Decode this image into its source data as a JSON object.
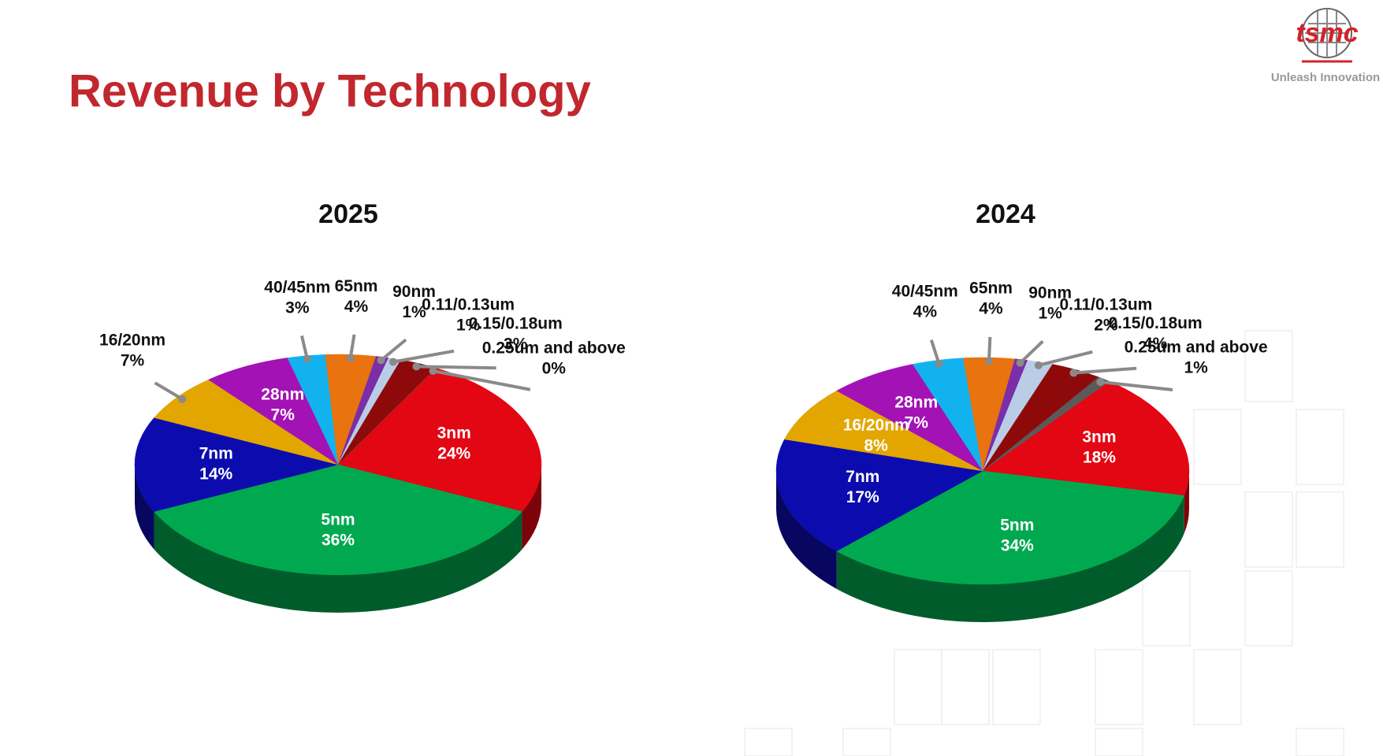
{
  "title": "Revenue by Technology",
  "logo": {
    "name": "tsmc",
    "tagline": "Unleash Innovation"
  },
  "chart_data": [
    {
      "type": "pie",
      "title": "2025",
      "categories": [
        "3nm",
        "5nm",
        "7nm",
        "16/20nm",
        "28nm",
        "40/45nm",
        "65nm",
        "90nm",
        "0.11/0.13um",
        "0.15/0.18um",
        "0.25um and above"
      ],
      "values": [
        24,
        36,
        14,
        7,
        7,
        3,
        4,
        1,
        1,
        3,
        0
      ],
      "value_labels": [
        "24%",
        "36%",
        "14%",
        "7%",
        "7%",
        "3%",
        "4%",
        "1%",
        "1%",
        "3%",
        "0%"
      ],
      "colors": [
        "#e30613",
        "#00a94f",
        "#0c0cae",
        "#e3a600",
        "#a312b5",
        "#12b2ef",
        "#e8730f",
        "#7a2ea8",
        "#b9cde6",
        "#8e0a0a",
        "#5a5a5a"
      ]
    },
    {
      "type": "pie",
      "title": "2024",
      "categories": [
        "3nm",
        "5nm",
        "7nm",
        "16/20nm",
        "28nm",
        "40/45nm",
        "65nm",
        "90nm",
        "0.11/0.13um",
        "0.15/0.18um",
        "0.25um and above"
      ],
      "values": [
        18,
        34,
        17,
        8,
        7,
        4,
        4,
        1,
        2,
        4,
        1
      ],
      "value_labels": [
        "18%",
        "34%",
        "17%",
        "8%",
        "7%",
        "4%",
        "4%",
        "1%",
        "2%",
        "4%",
        "1%"
      ],
      "colors": [
        "#e30613",
        "#00a94f",
        "#0c0cae",
        "#e3a600",
        "#a312b5",
        "#12b2ef",
        "#e8730f",
        "#7a2ea8",
        "#b9cde6",
        "#8e0a0a",
        "#5a5a5a"
      ]
    }
  ]
}
